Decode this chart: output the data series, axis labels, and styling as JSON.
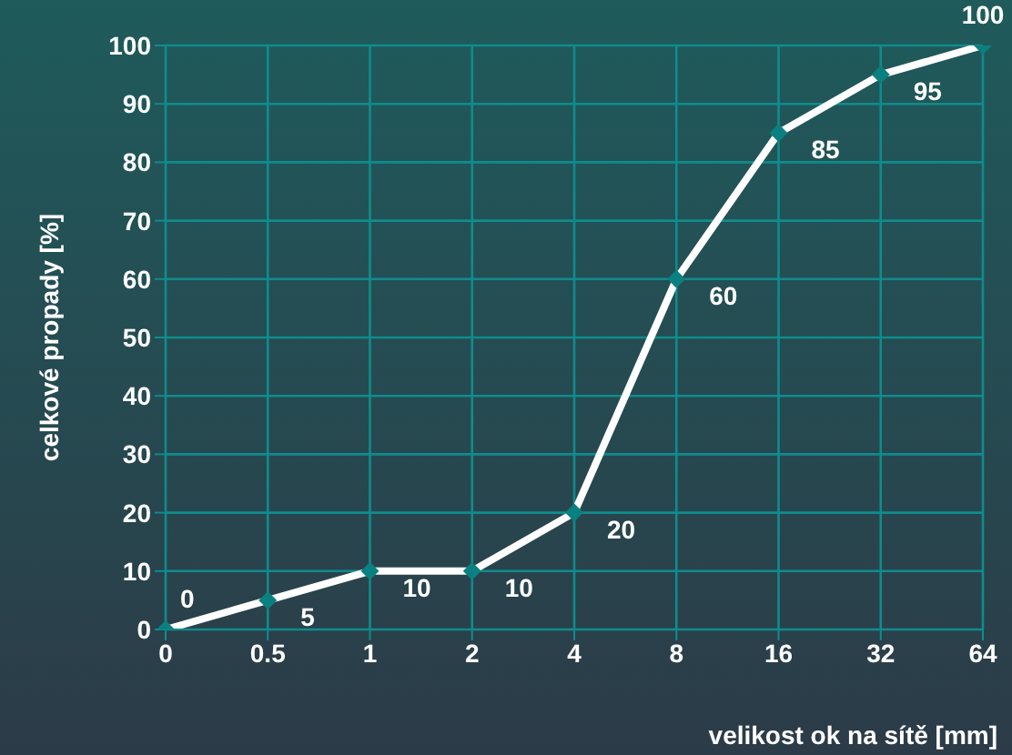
{
  "chart_data": {
    "type": "line",
    "xlabel": "velikost ok na sítě [mm]",
    "ylabel": "celkové propady [%]",
    "categories": [
      "0",
      "0.5",
      "1",
      "2",
      "4",
      "8",
      "16",
      "32",
      "64"
    ],
    "series": [
      {
        "color": "#ffffff",
        "values": [
          0,
          5,
          10,
          10,
          20,
          60,
          85,
          95,
          100
        ]
      }
    ],
    "ylim": [
      0,
      100
    ],
    "yticks": [
      0,
      10,
      20,
      30,
      40,
      50,
      60,
      70,
      80,
      90,
      100
    ],
    "grid": true,
    "legend": false,
    "marker": "diamond",
    "line_style": "solid",
    "data_labels": true
  }
}
